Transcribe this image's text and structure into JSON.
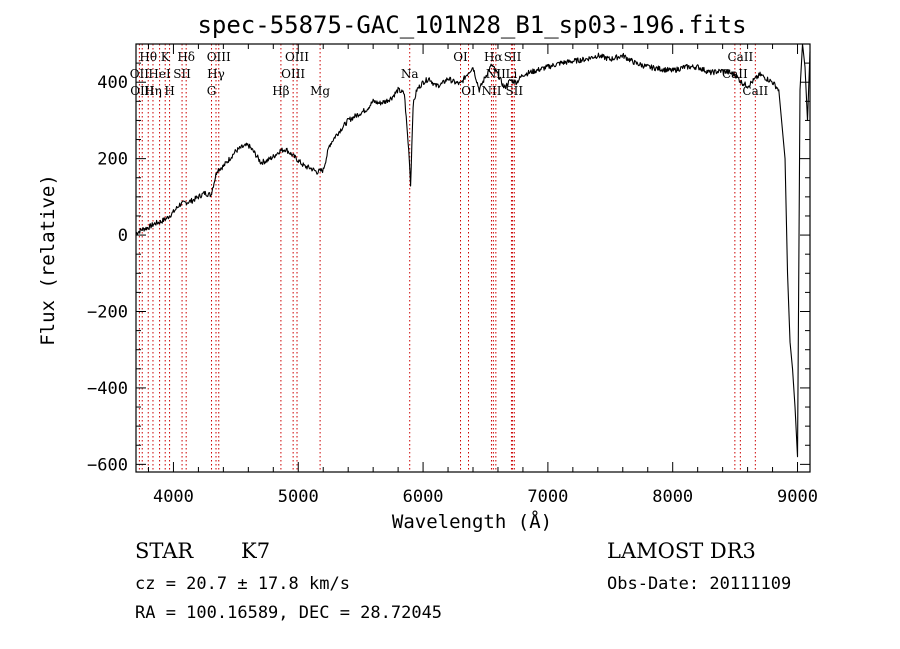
{
  "chart_data": {
    "type": "line",
    "title": "spec-55875-GAC_101N28_B1_sp03-196.fits",
    "xlabel": "Wavelength (Å)",
    "ylabel": "Flux (relative)",
    "xlim": [
      3700,
      9100
    ],
    "ylim": [
      -620,
      500
    ],
    "xticks": [
      4000,
      5000,
      6000,
      7000,
      8000,
      9000
    ],
    "yticks": [
      -600,
      -400,
      -200,
      0,
      200,
      400
    ],
    "grid": false,
    "series": [
      {
        "name": "spectrum",
        "x": [
          3700,
          3750,
          3800,
          3850,
          3900,
          3950,
          4000,
          4050,
          4100,
          4150,
          4200,
          4250,
          4300,
          4350,
          4400,
          4450,
          4500,
          4550,
          4600,
          4650,
          4700,
          4750,
          4800,
          4850,
          4900,
          4950,
          5000,
          5050,
          5100,
          5150,
          5200,
          5250,
          5300,
          5350,
          5400,
          5450,
          5500,
          5550,
          5600,
          5650,
          5700,
          5750,
          5800,
          5850,
          5890,
          5900,
          5920,
          5950,
          6000,
          6050,
          6100,
          6150,
          6200,
          6250,
          6300,
          6350,
          6400,
          6450,
          6500,
          6550,
          6600,
          6650,
          6700,
          6750,
          6800,
          6900,
          7000,
          7100,
          7200,
          7300,
          7400,
          7500,
          7600,
          7700,
          7800,
          7900,
          8000,
          8100,
          8200,
          8300,
          8400,
          8500,
          8550,
          8600,
          8650,
          8700,
          8750,
          8800,
          8850,
          8900,
          8920,
          8940,
          8960,
          8980,
          9000,
          9020,
          9040,
          9060,
          9080,
          9100
        ],
        "y": [
          5,
          15,
          20,
          30,
          35,
          45,
          60,
          80,
          85,
          90,
          100,
          110,
          105,
          170,
          180,
          200,
          220,
          230,
          235,
          215,
          190,
          195,
          205,
          220,
          225,
          210,
          195,
          180,
          175,
          165,
          170,
          235,
          260,
          280,
          300,
          310,
          320,
          330,
          350,
          345,
          350,
          360,
          380,
          370,
          200,
          130,
          340,
          380,
          400,
          410,
          390,
          395,
          410,
          400,
          395,
          420,
          440,
          380,
          415,
          445,
          420,
          385,
          405,
          400,
          420,
          430,
          440,
          450,
          455,
          460,
          470,
          460,
          470,
          450,
          440,
          435,
          430,
          440,
          440,
          425,
          430,
          420,
          400,
          390,
          405,
          420,
          410,
          400,
          380,
          200,
          -100,
          -280,
          -350,
          -450,
          -580,
          380,
          500,
          440,
          300,
          480
        ]
      }
    ],
    "line_labels": [
      {
        "text": "Hθ",
        "x": 3798,
        "row": 1
      },
      {
        "text": "K",
        "x": 3934,
        "row": 1
      },
      {
        "text": "Hδ",
        "x": 4102,
        "row": 1
      },
      {
        "text": "OII",
        "x": 3727,
        "row": 2
      },
      {
        "text": "HeI",
        "x": 3889,
        "row": 2
      },
      {
        "text": "SII",
        "x": 4069,
        "row": 2
      },
      {
        "text": "OIII",
        "x": 3750,
        "row": 3
      },
      {
        "text": "Hη",
        "x": 3836,
        "row": 3
      },
      {
        "text": "H",
        "x": 3969,
        "row": 3
      },
      {
        "text": "OIII",
        "x": 4363,
        "row": 1
      },
      {
        "text": "Hγ",
        "x": 4341,
        "row": 2
      },
      {
        "text": "G",
        "x": 4305,
        "row": 3
      },
      {
        "text": "OIII",
        "x": 4990,
        "row": 1
      },
      {
        "text": "OIII",
        "x": 4959,
        "row": 2
      },
      {
        "text": "Hβ",
        "x": 4861,
        "row": 3
      },
      {
        "text": "Mg",
        "x": 5175,
        "row": 3
      },
      {
        "text": "Na",
        "x": 5893,
        "row": 2
      },
      {
        "text": "OI",
        "x": 6300,
        "row": 1
      },
      {
        "text": "OI",
        "x": 6364,
        "row": 3
      },
      {
        "text": "Hα",
        "x": 6563,
        "row": 1
      },
      {
        "text": "SII",
        "x": 6717,
        "row": 1
      },
      {
        "text": "NII",
        "x": 6583,
        "row": 2
      },
      {
        "text": "Li",
        "x": 6708,
        "row": 2
      },
      {
        "text": "NII",
        "x": 6548,
        "row": 3
      },
      {
        "text": "SII",
        "x": 6731,
        "row": 3
      },
      {
        "text": "CaII",
        "x": 8542,
        "row": 1
      },
      {
        "text": "CaII",
        "x": 8498,
        "row": 2
      },
      {
        "text": "CaII",
        "x": 8662,
        "row": 3
      }
    ],
    "marker_lines": [
      3727,
      3750,
      3798,
      3836,
      3889,
      3934,
      3969,
      4069,
      4102,
      4305,
      4341,
      4363,
      4861,
      4959,
      4990,
      5175,
      5893,
      6300,
      6364,
      6548,
      6563,
      6583,
      6708,
      6717,
      6731,
      8498,
      8542,
      8662
    ],
    "colors": {
      "spectrum": "#000000",
      "markers": "#cc0000",
      "axes": "#000000"
    }
  },
  "info": {
    "object_type": "STAR",
    "subclass": "K7",
    "redshift": "cz = 20.7 ± 17.8 km/s",
    "coords": "RA = 100.16589, DEC =  28.72045",
    "survey": "LAMOST DR3",
    "obs_date": "Obs-Date: 20111109"
  }
}
